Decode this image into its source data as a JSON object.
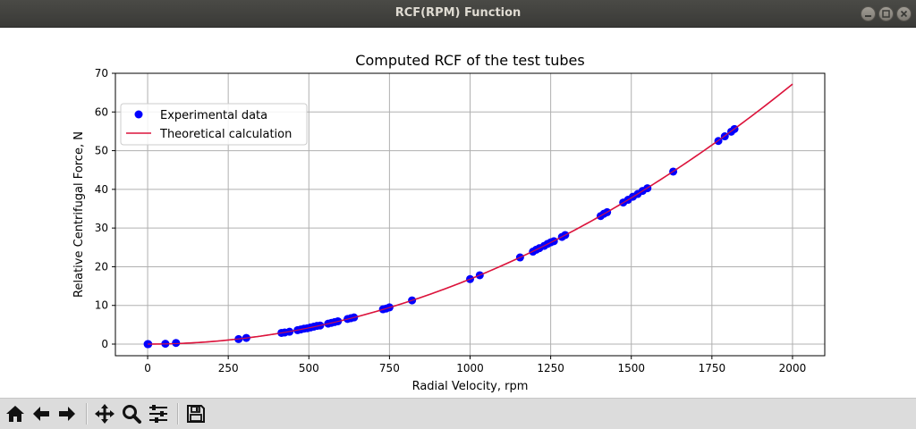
{
  "window": {
    "title": "RCF(RPM) Function"
  },
  "toolbar": {
    "buttons": [
      {
        "name": "home-button",
        "icon": "home-icon"
      },
      {
        "name": "back-button",
        "icon": "arrow-left-icon"
      },
      {
        "name": "forward-button",
        "icon": "arrow-right-icon"
      },
      {
        "name": "pan-button",
        "icon": "move-icon"
      },
      {
        "name": "zoom-button",
        "icon": "magnifier-icon"
      },
      {
        "name": "configure-subplots-button",
        "icon": "sliders-icon"
      },
      {
        "name": "save-button",
        "icon": "floppy-disk-icon"
      }
    ]
  },
  "chart_data": {
    "type": "scatter",
    "title": "Computed RCF of the test tubes",
    "xlabel": "Radial Velocity, rpm",
    "ylabel": "Relative Centrifugal Force, N",
    "xlim": [
      -100,
      2100
    ],
    "ylim": [
      -3,
      70
    ],
    "xticks": [
      0,
      250,
      500,
      750,
      1000,
      1250,
      1500,
      1750,
      2000
    ],
    "yticks": [
      0,
      10,
      20,
      30,
      40,
      50,
      60,
      70
    ],
    "grid": true,
    "legend_position": "upper-left",
    "colors": {
      "points": "#0000ff",
      "curve": "#dc143c"
    },
    "series": [
      {
        "name": "Experimental data",
        "kind": "scatter",
        "x": [
          0,
          2,
          55,
          88,
          282,
          306,
          415,
          425,
          440,
          465,
          475,
          485,
          495,
          505,
          515,
          525,
          535,
          560,
          570,
          580,
          590,
          620,
          630,
          640,
          730,
          740,
          750,
          820,
          1000,
          1030,
          1155,
          1195,
          1205,
          1215,
          1230,
          1240,
          1250,
          1260,
          1285,
          1295,
          1405,
          1415,
          1425,
          1475,
          1490,
          1505,
          1520,
          1535,
          1550,
          1630,
          1770,
          1790,
          1810,
          1820
        ],
        "y": [
          0,
          0,
          0.1,
          0.3,
          1.3,
          1.6,
          2.9,
          3.0,
          3.2,
          3.6,
          3.8,
          4.0,
          4.1,
          4.3,
          4.5,
          4.7,
          4.8,
          5.3,
          5.5,
          5.7,
          5.9,
          6.5,
          6.7,
          6.9,
          9.0,
          9.2,
          9.5,
          11.3,
          16.8,
          17.8,
          22.4,
          23.9,
          24.4,
          24.8,
          25.4,
          25.9,
          26.3,
          26.6,
          27.7,
          28.2,
          33.1,
          33.7,
          34.1,
          36.6,
          37.3,
          38.1,
          38.8,
          39.6,
          40.3,
          44.6,
          52.5,
          53.7,
          54.9,
          55.6
        ]
      },
      {
        "name": "Theoretical calculation",
        "kind": "line",
        "coefficient": 1.68e-05,
        "exponent": 2,
        "x_range": [
          0,
          2000
        ]
      }
    ]
  }
}
